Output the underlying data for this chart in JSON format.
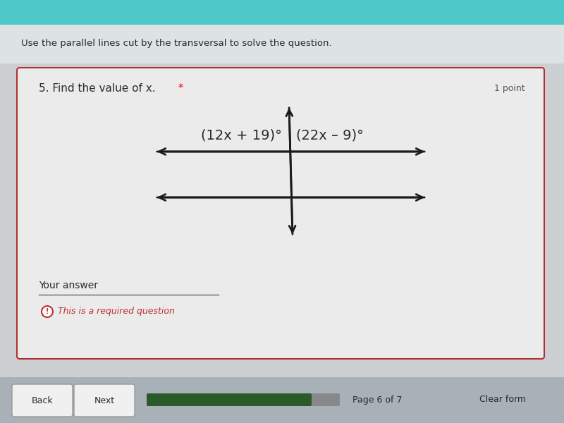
{
  "bg_teal": "#4ec9c9",
  "bg_light_gray": "#d8d8d8",
  "bg_page": "#c8cdd0",
  "card_bg": "#e8e8ea",
  "card_border": "#b03030",
  "title_top": "Use the parallel lines cut by the transversal to solve the question.",
  "question_text": "5. Find the value of x.",
  "question_star": " *",
  "points_label": "1 point",
  "left_label": "(12x + 19)°",
  "right_label": "(22x – 9)°",
  "your_answer_label": "Your answer",
  "required_label": "This is a required question",
  "page_label": "Page 6 of 7",
  "back_label": "Back",
  "next_label": "Next",
  "clear_label": "Clear form",
  "text_color": "#2a2a2a",
  "gray_text": "#555555",
  "required_color": "#c03030",
  "answer_line_color": "#666666",
  "progress_color": "#2a5a2a",
  "arrow_color": "#1a1a1a",
  "bottom_bg": "#a8b0b8"
}
